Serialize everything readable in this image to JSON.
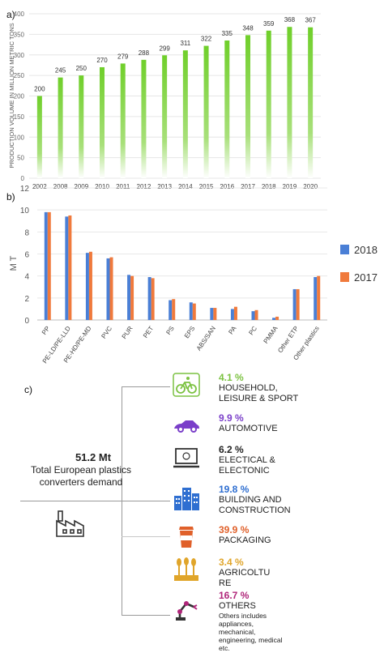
{
  "panels": {
    "a": "a)",
    "b": "b)",
    "c": "c)"
  },
  "chart_data": [
    {
      "type": "bar",
      "ylabel": "PRODUCTION VOLUME IN MILLION METRIC TONS",
      "ylim": [
        0,
        400
      ],
      "yticks": [
        0,
        50,
        100,
        150,
        200,
        250,
        300,
        350,
        400
      ],
      "categories": [
        "2002",
        "2008",
        "2009",
        "2010",
        "2011",
        "2012",
        "2013",
        "2014",
        "2015",
        "2016",
        "2017",
        "2018",
        "2019",
        "2020"
      ],
      "values": [
        200,
        245,
        250,
        270,
        279,
        288,
        299,
        311,
        322,
        335,
        348,
        359,
        368,
        367
      ],
      "data_labels": [
        "200",
        "245",
        "250",
        "270",
        "279",
        "288",
        "299",
        "311",
        "322",
        "335",
        "348",
        "359",
        "368",
        "367"
      ],
      "grid": true,
      "color": "#7fd13b"
    },
    {
      "type": "bar",
      "ylabel": "M T",
      "ylim": [
        0,
        12
      ],
      "yticks": [
        0,
        2,
        4,
        6,
        8,
        10,
        12
      ],
      "categories": [
        "PP",
        "PE-LD/PE-LLD",
        "PE-HD/PE-MD",
        "PVC",
        "PUR",
        "PET",
        "PS",
        "EPS",
        "ABS/SAN",
        "PA",
        "PC",
        "PMMA",
        "Other ETP",
        "Other plastics"
      ],
      "series": [
        {
          "name": "2018",
          "values": [
            9.8,
            9.4,
            6.1,
            5.6,
            4.1,
            3.9,
            1.8,
            1.6,
            1.1,
            1.0,
            0.8,
            0.2,
            2.8,
            3.9
          ],
          "color": "#4a7fd6"
        },
        {
          "name": "2017",
          "values": [
            9.8,
            9.5,
            6.2,
            5.7,
            4.0,
            3.8,
            1.9,
            1.5,
            1.1,
            1.2,
            0.9,
            0.3,
            2.8,
            4.0
          ],
          "color": "#f07a3c"
        }
      ],
      "legend": "right",
      "grid": true
    }
  ],
  "demand": {
    "total": "51.2 Mt",
    "caption_line1": "Total European plastics",
    "caption_line2": "converters demand",
    "sectors": [
      {
        "pct": "4.1 %",
        "label1": "HOUSEHOLD,",
        "label2": "LEISURE & SPORT",
        "color": "#7cc242",
        "icon": "bicycle-icon"
      },
      {
        "pct": "9.9 %",
        "label1": "AUTOMOTIVE",
        "label2": "",
        "color": "#7a3fc9",
        "icon": "car-icon"
      },
      {
        "pct": "6.2 %",
        "label1": "ELECTICAL &",
        "label2": "ELECTONIC",
        "color": "#222222",
        "icon": "laptop-icon"
      },
      {
        "pct": "19.8 %",
        "label1": "BUILDING AND",
        "label2": "CONSTRUCTION",
        "color": "#2f6fd1",
        "icon": "buildings-icon"
      },
      {
        "pct": "39.9 %",
        "label1": "PACKAGING",
        "label2": "",
        "color": "#e0602a",
        "icon": "cup-icon"
      },
      {
        "pct": "3.4 %",
        "label1": "AGRICOLTU",
        "label2": "RE",
        "color": "#e0a52a",
        "icon": "wheat-icon"
      },
      {
        "pct": "16.7 %",
        "label1": "OTHERS",
        "label2": "",
        "color": "#b0267a",
        "icon": "robot-arm-icon",
        "note": [
          "Others includes",
          "appliances,",
          "mechanical,",
          "engineering, medical",
          "etc."
        ]
      }
    ]
  }
}
